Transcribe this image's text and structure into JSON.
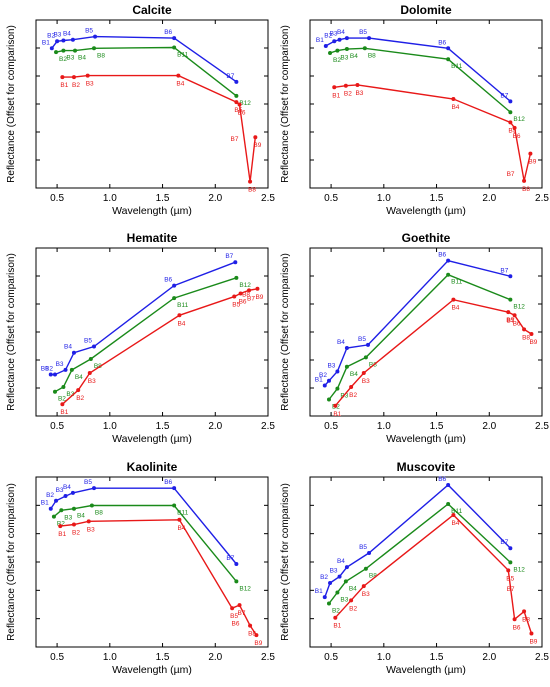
{
  "figure": {
    "xlabel": "Wavelength (µm)",
    "ylabel": "Reflectance (Offset for comparison)",
    "colors": {
      "blue": "#1f1fe6",
      "green": "#1a8a1a",
      "red": "#e81818"
    }
  },
  "chart_data": [
    {
      "type": "line",
      "title": "Calcite",
      "xlabel": "Wavelength (µm)",
      "ylabel": "Reflectance (Offset for comparison)",
      "xlim": [
        0.3,
        2.5
      ],
      "ylim": [
        0,
        1
      ],
      "xticks": [
        "0.5",
        "1.0",
        "1.5",
        "2.0",
        "2.5"
      ],
      "series": [
        {
          "color": "#1f1fe6",
          "x": [
            0.45,
            0.5,
            0.56,
            0.65,
            0.86,
            1.61,
            2.2
          ],
          "y": [
            0.87,
            0.915,
            0.92,
            0.925,
            0.945,
            0.935,
            0.655
          ],
          "labels": [
            "B1",
            "B2",
            "B3",
            "B4",
            "B5",
            "B6",
            "B7"
          ]
        },
        {
          "color": "#1a8a1a",
          "x": [
            0.49,
            0.56,
            0.67,
            0.85,
            1.61,
            2.2
          ],
          "y": [
            0.845,
            0.855,
            0.855,
            0.87,
            0.875,
            0.565
          ],
          "labels": [
            "B2",
            "B3",
            "B4",
            "B8",
            "B11",
            "B12"
          ]
        },
        {
          "color": "#e81818",
          "x": [
            0.55,
            0.66,
            0.79,
            1.65,
            2.2,
            2.23,
            2.33,
            2.38
          ],
          "y": [
            0.685,
            0.685,
            0.695,
            0.695,
            0.525,
            0.51,
            0.015,
            0.3
          ],
          "labels": [
            "B1",
            "B2",
            "B3",
            "B4",
            "B5",
            "B6",
            "B8",
            "B9"
          ]
        }
      ],
      "extra_labels": [
        {
          "text": "B7",
          "color": "#e81818",
          "x": 2.22,
          "y": 0.275
        }
      ]
    },
    {
      "type": "line",
      "title": "Dolomite",
      "xlabel": "Wavelength (µm)",
      "ylabel": "Reflectance (Offset for comparison)",
      "xlim": [
        0.3,
        2.5
      ],
      "ylim": [
        0,
        1
      ],
      "xticks": [
        "0.5",
        "1.0",
        "1.5",
        "2.0",
        "2.5"
      ],
      "series": [
        {
          "color": "#1f1fe6",
          "x": [
            0.45,
            0.53,
            0.58,
            0.65,
            0.86,
            1.61,
            2.2
          ],
          "y": [
            0.885,
            0.915,
            0.925,
            0.935,
            0.935,
            0.87,
            0.53
          ],
          "labels": [
            "B1",
            "B2",
            "B3",
            "B4",
            "B5",
            "B6",
            "B7"
          ]
        },
        {
          "color": "#1a8a1a",
          "x": [
            0.49,
            0.56,
            0.65,
            0.82,
            1.61,
            2.2
          ],
          "y": [
            0.84,
            0.855,
            0.865,
            0.87,
            0.8,
            0.46
          ],
          "labels": [
            "B2",
            "B3",
            "B4",
            "B8",
            "B11",
            "B12"
          ]
        },
        {
          "color": "#e81818",
          "x": [
            0.53,
            0.64,
            0.75,
            1.66,
            2.2,
            2.24,
            2.33,
            2.39
          ],
          "y": [
            0.62,
            0.63,
            0.635,
            0.545,
            0.395,
            0.36,
            0.02,
            0.195
          ],
          "labels": [
            "B1",
            "B2",
            "B3",
            "B4",
            "B5",
            "B6",
            "B8",
            "B9"
          ]
        }
      ],
      "extra_labels": [
        {
          "text": "B7",
          "color": "#e81818",
          "x": 2.24,
          "y": 0.05
        }
      ]
    },
    {
      "type": "line",
      "title": "Hematite",
      "xlabel": "Wavelength (µm)",
      "ylabel": "Reflectance (Offset for comparison)",
      "xlim": [
        0.3,
        2.5
      ],
      "ylim": [
        0,
        1
      ],
      "xticks": [
        "0.5",
        "1.0",
        "1.5",
        "2.0",
        "2.5"
      ],
      "series": [
        {
          "color": "#1f1fe6",
          "x": [
            0.44,
            0.48,
            0.58,
            0.66,
            0.85,
            1.61,
            2.19
          ],
          "y": [
            0.24,
            0.24,
            0.27,
            0.38,
            0.42,
            0.81,
            0.96
          ],
          "labels": [
            "B1",
            "B2",
            "B3",
            "B4",
            "B5",
            "B6",
            "B7"
          ]
        },
        {
          "color": "#1a8a1a",
          "x": [
            0.48,
            0.56,
            0.64,
            0.82,
            1.61,
            2.2
          ],
          "y": [
            0.13,
            0.16,
            0.27,
            0.34,
            0.73,
            0.86
          ],
          "labels": [
            "B2",
            "B3",
            "B4",
            "B8",
            "B11",
            "B12"
          ]
        },
        {
          "color": "#e81818",
          "x": [
            0.55,
            0.7,
            0.81,
            1.66,
            2.18,
            2.24,
            2.32,
            2.4
          ],
          "y": [
            0.05,
            0.14,
            0.25,
            0.62,
            0.74,
            0.76,
            0.78,
            0.79
          ],
          "labels": [
            "B1",
            "B2",
            "B3",
            "B4",
            "B5",
            "B6",
            "B7",
            "B9"
          ]
        }
      ],
      "extra_labels": [
        {
          "text": "B8",
          "color": "#e81818",
          "x": 2.33,
          "y": 0.74
        }
      ]
    },
    {
      "type": "line",
      "title": "Goethite",
      "xlabel": "Wavelength (µm)",
      "ylabel": "Reflectance (Offset for comparison)",
      "xlim": [
        0.3,
        2.5
      ],
      "ylim": [
        0,
        1
      ],
      "xticks": [
        "0.5",
        "1.0",
        "1.5",
        "2.0",
        "2.5"
      ],
      "series": [
        {
          "color": "#1f1fe6",
          "x": [
            0.44,
            0.48,
            0.56,
            0.65,
            0.85,
            1.61,
            2.2
          ],
          "y": [
            0.17,
            0.2,
            0.26,
            0.41,
            0.43,
            0.97,
            0.87
          ],
          "labels": [
            "B1",
            "B2",
            "B3",
            "B4",
            "B5",
            "B6",
            "B7"
          ]
        },
        {
          "color": "#1a8a1a",
          "x": [
            0.48,
            0.56,
            0.65,
            0.83,
            1.61,
            2.2
          ],
          "y": [
            0.08,
            0.15,
            0.29,
            0.35,
            0.88,
            0.72
          ],
          "labels": [
            "B2",
            "B3",
            "B4",
            "B8",
            "B11",
            "B12"
          ]
        },
        {
          "color": "#e81818",
          "x": [
            0.54,
            0.69,
            0.81,
            1.66,
            2.18,
            2.24,
            2.33,
            2.4
          ],
          "y": [
            0.04,
            0.16,
            0.25,
            0.72,
            0.64,
            0.62,
            0.53,
            0.5
          ],
          "labels": [
            "B1",
            "B2",
            "B3",
            "B4",
            "B5",
            "B6",
            "B8",
            "B9"
          ]
        }
      ],
      "extra_labels": [
        {
          "text": "B7",
          "color": "#e81818",
          "x": 2.24,
          "y": 0.575
        }
      ]
    },
    {
      "type": "line",
      "title": "Kaolinite",
      "xlabel": "Wavelength (µm)",
      "ylabel": "Reflectance (Offset for comparison)",
      "xlim": [
        0.3,
        2.5
      ],
      "ylim": [
        0,
        1
      ],
      "xticks": [
        "0.5",
        "1.0",
        "1.5",
        "2.0",
        "2.5"
      ],
      "series": [
        {
          "color": "#1f1fe6",
          "x": [
            0.44,
            0.49,
            0.58,
            0.65,
            0.85,
            1.61,
            2.2
          ],
          "y": [
            0.85,
            0.9,
            0.93,
            0.95,
            0.98,
            0.98,
            0.5
          ],
          "labels": [
            "B1",
            "B2",
            "B3",
            "B4",
            "B5",
            "B6",
            "B7"
          ]
        },
        {
          "color": "#1a8a1a",
          "x": [
            0.47,
            0.54,
            0.66,
            0.83,
            1.61,
            2.2
          ],
          "y": [
            0.8,
            0.84,
            0.85,
            0.87,
            0.87,
            0.39
          ],
          "labels": [
            "B2",
            "B3",
            "B4",
            "B8",
            "B11",
            "B12"
          ]
        },
        {
          "color": "#e81818",
          "x": [
            0.53,
            0.66,
            0.8,
            1.66,
            2.16,
            2.23,
            2.33,
            2.39
          ],
          "y": [
            0.74,
            0.75,
            0.77,
            0.78,
            0.22,
            0.24,
            0.11,
            0.05
          ],
          "labels": [
            "B1",
            "B2",
            "B3",
            "B4",
            "B5",
            "B7",
            "B8",
            "B9"
          ]
        }
      ],
      "extra_labels": [
        {
          "text": "B6",
          "color": "#e81818",
          "x": 2.23,
          "y": 0.11
        }
      ]
    },
    {
      "type": "line",
      "title": "Muscovite",
      "xlabel": "Wavelength (µm)",
      "ylabel": "Reflectance (Offset for comparison)",
      "xlim": [
        0.3,
        2.5
      ],
      "ylim": [
        0,
        1
      ],
      "xticks": [
        "0.5",
        "1.0",
        "1.5",
        "2.0",
        "2.5"
      ],
      "series": [
        {
          "color": "#1f1fe6",
          "x": [
            0.44,
            0.49,
            0.58,
            0.65,
            0.86,
            1.61,
            2.2
          ],
          "y": [
            0.29,
            0.38,
            0.42,
            0.48,
            0.57,
            1.0,
            0.6
          ],
          "labels": [
            "B1",
            "B2",
            "B3",
            "B4",
            "B5",
            "B6",
            "B7"
          ]
        },
        {
          "color": "#1a8a1a",
          "x": [
            0.48,
            0.56,
            0.64,
            0.83,
            1.61,
            2.2
          ],
          "y": [
            0.25,
            0.32,
            0.39,
            0.47,
            0.88,
            0.51
          ],
          "labels": [
            "B2",
            "B3",
            "B4",
            "B8",
            "B11",
            "B12"
          ]
        },
        {
          "color": "#e81818",
          "x": [
            0.54,
            0.69,
            0.81,
            1.66,
            2.18,
            2.24,
            2.33,
            2.4
          ],
          "y": [
            0.16,
            0.27,
            0.36,
            0.81,
            0.46,
            0.15,
            0.2,
            0.06
          ],
          "labels": [
            "B1",
            "B2",
            "B3",
            "B4",
            "B5",
            "B6",
            "B8",
            "B9"
          ]
        }
      ],
      "extra_labels": [
        {
          "text": "B7",
          "color": "#e81818",
          "x": 2.24,
          "y": 0.33
        }
      ]
    }
  ]
}
